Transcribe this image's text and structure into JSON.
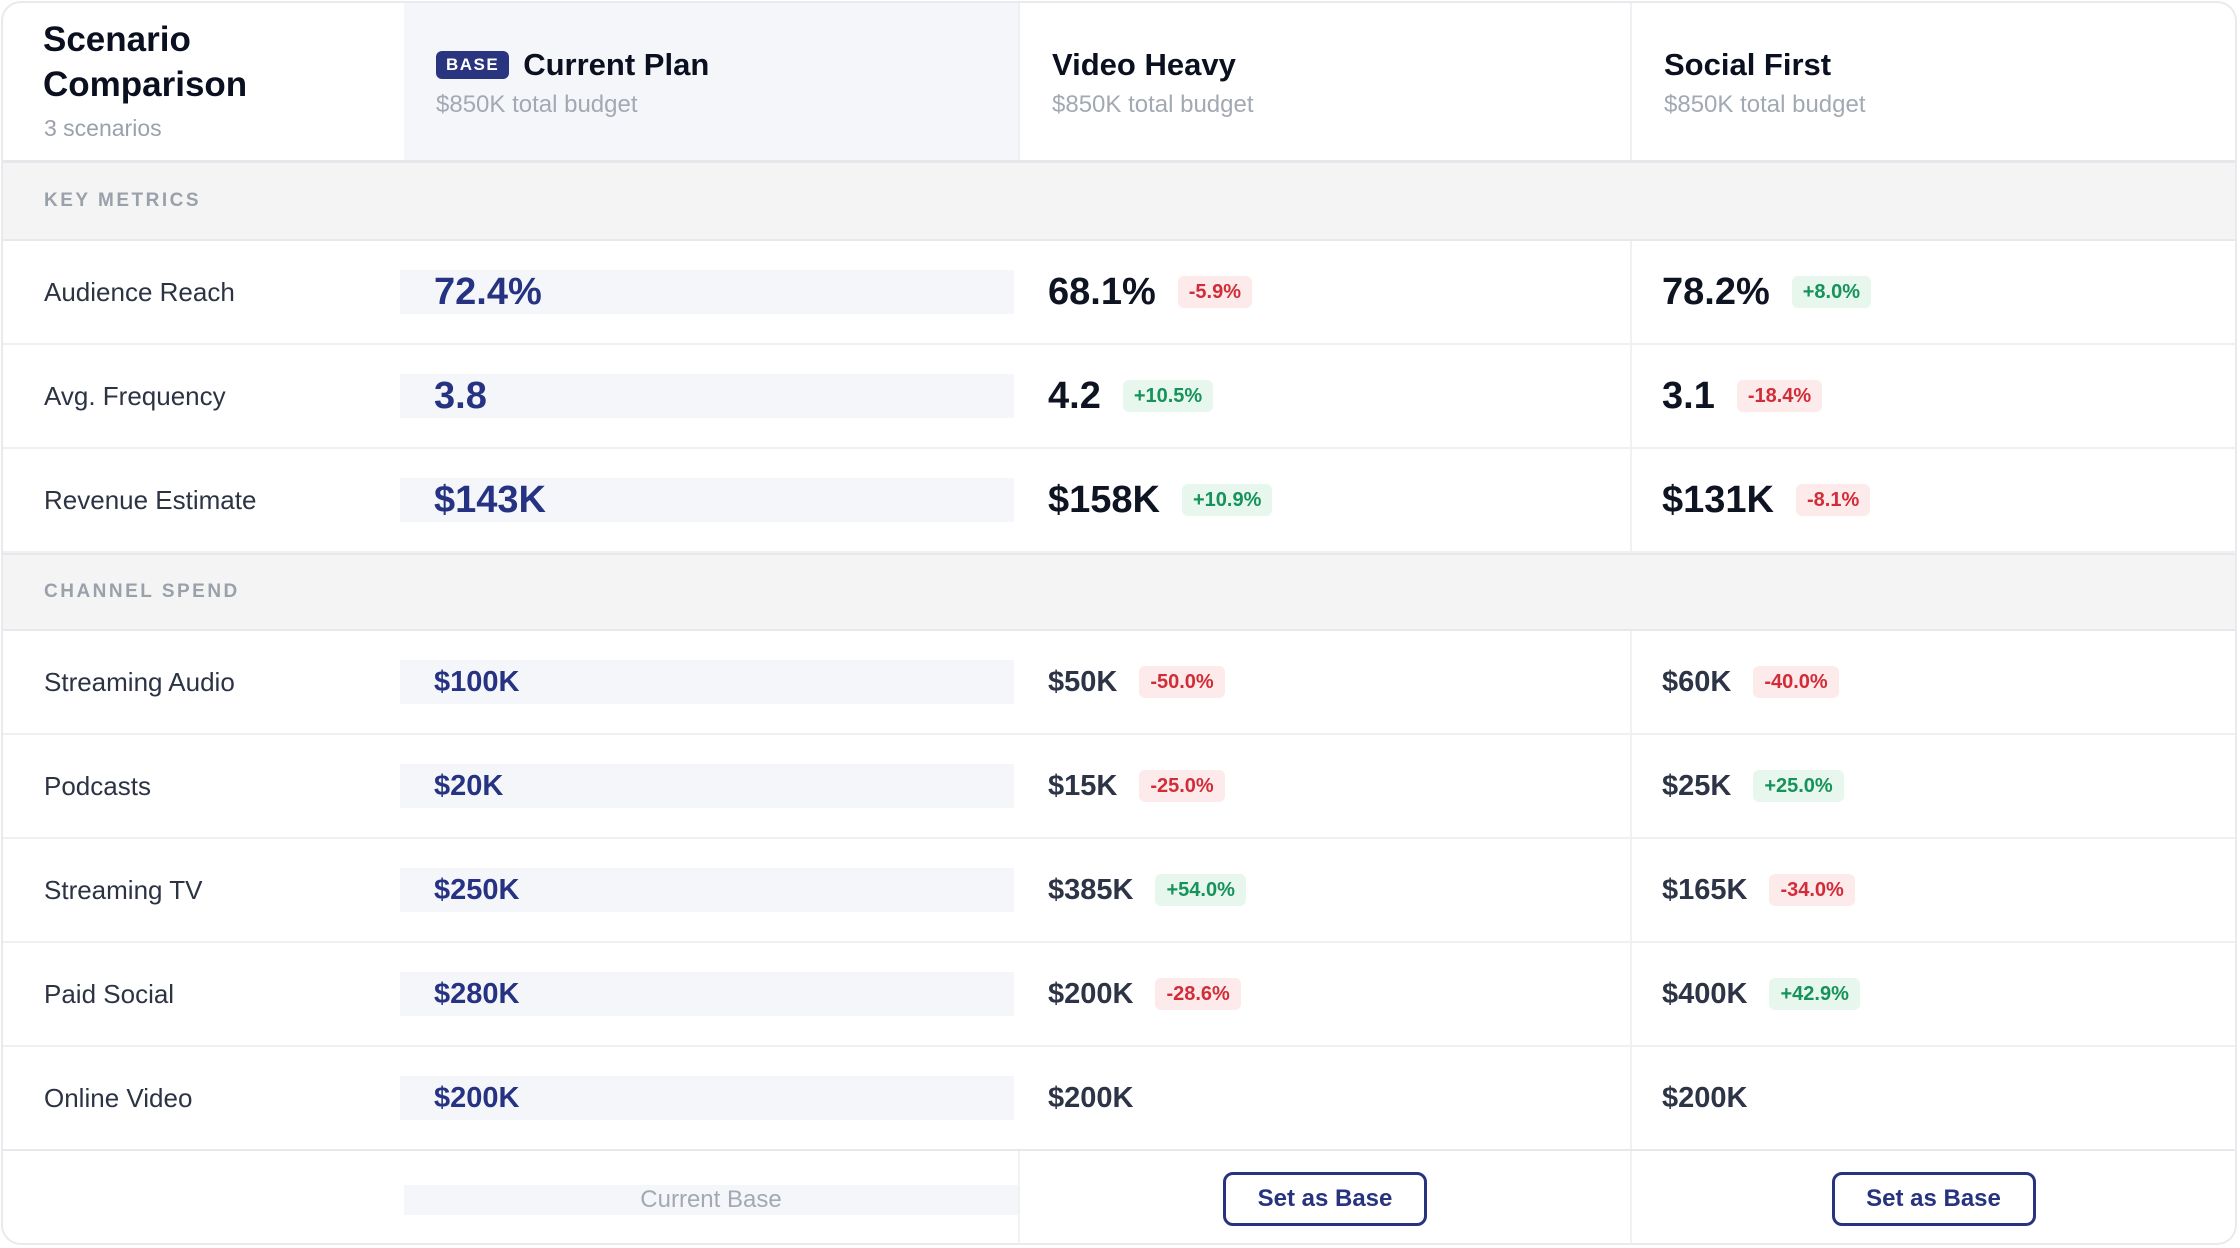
{
  "header": {
    "title": "Scenario Comparison",
    "subtitle": "3 scenarios",
    "base_badge": "BASE",
    "scenarios": [
      {
        "name": "Current Plan",
        "budget": "$850K total budget"
      },
      {
        "name": "Video Heavy",
        "budget": "$850K total budget"
      },
      {
        "name": "Social First",
        "budget": "$850K total budget"
      }
    ]
  },
  "sections": {
    "key_metrics": "KEY METRICS",
    "channel_spend": "CHANNEL SPEND"
  },
  "metrics": [
    {
      "label": "Audience Reach",
      "base": "72.4%",
      "video": {
        "value": "68.1%",
        "delta": "-5.9%",
        "trend": "neg"
      },
      "social": {
        "value": "78.2%",
        "delta": "+8.0%",
        "trend": "pos"
      }
    },
    {
      "label": "Avg. Frequency",
      "base": "3.8",
      "video": {
        "value": "4.2",
        "delta": "+10.5%",
        "trend": "pos"
      },
      "social": {
        "value": "3.1",
        "delta": "-18.4%",
        "trend": "neg"
      }
    },
    {
      "label": "Revenue Estimate",
      "base": "$143K",
      "video": {
        "value": "$158K",
        "delta": "+10.9%",
        "trend": "pos"
      },
      "social": {
        "value": "$131K",
        "delta": "-8.1%",
        "trend": "neg"
      }
    }
  ],
  "spend": [
    {
      "label": "Streaming Audio",
      "base": "$100K",
      "video": {
        "value": "$50K",
        "delta": "-50.0%",
        "trend": "neg"
      },
      "social": {
        "value": "$60K",
        "delta": "-40.0%",
        "trend": "neg"
      }
    },
    {
      "label": "Podcasts",
      "base": "$20K",
      "video": {
        "value": "$15K",
        "delta": "-25.0%",
        "trend": "neg"
      },
      "social": {
        "value": "$25K",
        "delta": "+25.0%",
        "trend": "pos"
      }
    },
    {
      "label": "Streaming TV",
      "base": "$250K",
      "video": {
        "value": "$385K",
        "delta": "+54.0%",
        "trend": "pos"
      },
      "social": {
        "value": "$165K",
        "delta": "-34.0%",
        "trend": "neg"
      }
    },
    {
      "label": "Paid Social",
      "base": "$280K",
      "video": {
        "value": "$200K",
        "delta": "-28.6%",
        "trend": "neg"
      },
      "social": {
        "value": "$400K",
        "delta": "+42.9%",
        "trend": "pos"
      }
    },
    {
      "label": "Online Video",
      "base": "$200K",
      "video": {
        "value": "$200K"
      },
      "social": {
        "value": "$200K"
      }
    }
  ],
  "footer": {
    "current_base": "Current Base",
    "video_button": "Set as Base",
    "social_button": "Set as Base"
  },
  "colors": {
    "accent": "#27337f",
    "positive": "#16925a",
    "negative": "#d12d38"
  }
}
